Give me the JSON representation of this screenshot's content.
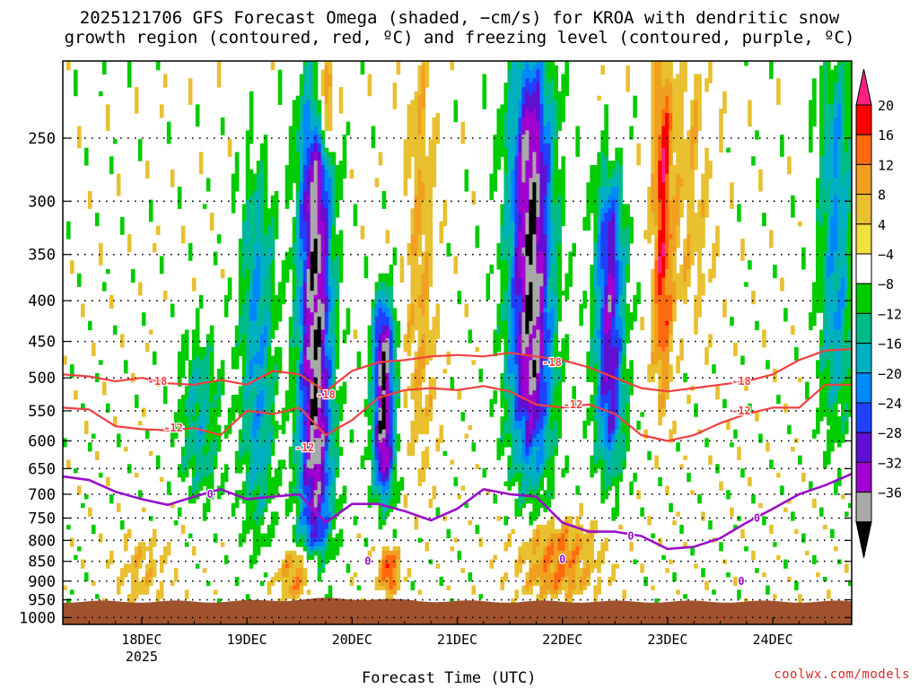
{
  "chart_data": {
    "type": "heatmap",
    "title_line1": "2025121706 GFS Forecast Omega (shaded, −cm/s) for KROA with dendritic snow",
    "title_line2": "growth region (contoured, red, ºC) and freezing level (contoured, purple, ºC)",
    "xlabel": "Forecast Time (UTC)",
    "y_ticks": [
      250,
      300,
      350,
      400,
      450,
      500,
      550,
      600,
      650,
      700,
      750,
      800,
      850,
      900,
      950,
      1000
    ],
    "y_tick_labels": [
      "250",
      "300",
      "350",
      "400",
      "450",
      "500",
      "550",
      "600",
      "650",
      "700",
      "750",
      "800",
      "850",
      "900",
      "950",
      "1000"
    ],
    "ylim": [
      1020,
      200
    ],
    "x_range_days": [
      17.25,
      24.75
    ],
    "x_ticks": [
      {
        "day": 18,
        "label": "18DEC",
        "sub": "2025"
      },
      {
        "day": 19,
        "label": "19DEC",
        "sub": ""
      },
      {
        "day": 20,
        "label": "20DEC",
        "sub": ""
      },
      {
        "day": 21,
        "label": "21DEC",
        "sub": ""
      },
      {
        "day": 22,
        "label": "22DEC",
        "sub": ""
      },
      {
        "day": 23,
        "label": "23DEC",
        "sub": ""
      },
      {
        "day": 24,
        "label": "24DEC",
        "sub": ""
      }
    ],
    "colorbar": {
      "labels": [
        "20",
        "16",
        "12",
        "8",
        "4",
        "−4",
        "−8",
        "−12",
        "−16",
        "−20",
        "−24",
        "−28",
        "−32",
        "−36"
      ],
      "colors": [
        "#ff0000",
        "#ff6a10",
        "#f0a020",
        "#e8c030",
        "#f0e040",
        "#ffffff",
        "#00cc00",
        "#00bb88",
        "#00b0c0",
        "#0088ff",
        "#2040ff",
        "#6010d0",
        "#a000d0",
        "#a8a8a8"
      ],
      "cap_top_color": "#ff2080",
      "cap_bottom_color": "#000000"
    },
    "contour_18": [
      [
        17.25,
        495
      ],
      [
        17.5,
        498
      ],
      [
        17.75,
        505
      ],
      [
        18.0,
        500
      ],
      [
        18.25,
        508
      ],
      [
        18.5,
        510
      ],
      [
        18.75,
        503
      ],
      [
        19.0,
        510
      ],
      [
        19.25,
        490
      ],
      [
        19.5,
        495
      ],
      [
        19.75,
        520
      ],
      [
        20.0,
        490
      ],
      [
        20.25,
        478
      ],
      [
        20.5,
        475
      ],
      [
        20.75,
        470
      ],
      [
        21.0,
        468
      ],
      [
        21.25,
        470
      ],
      [
        21.5,
        465
      ],
      [
        21.75,
        470
      ],
      [
        22.0,
        475
      ],
      [
        22.25,
        485
      ],
      [
        22.5,
        500
      ],
      [
        22.75,
        515
      ],
      [
        23.0,
        520
      ],
      [
        23.25,
        515
      ],
      [
        23.5,
        510
      ],
      [
        23.75,
        505
      ],
      [
        24.0,
        495
      ],
      [
        24.25,
        475
      ],
      [
        24.5,
        462
      ],
      [
        24.75,
        460
      ]
    ],
    "contour_12": [
      [
        17.25,
        545
      ],
      [
        17.5,
        548
      ],
      [
        17.75,
        575
      ],
      [
        18.0,
        580
      ],
      [
        18.25,
        582
      ],
      [
        18.5,
        578
      ],
      [
        18.75,
        590
      ],
      [
        19.0,
        550
      ],
      [
        19.25,
        555
      ],
      [
        19.5,
        545
      ],
      [
        19.75,
        590
      ],
      [
        20.0,
        565
      ],
      [
        20.25,
        530
      ],
      [
        20.5,
        518
      ],
      [
        20.75,
        515
      ],
      [
        21.0,
        518
      ],
      [
        21.25,
        512
      ],
      [
        21.5,
        520
      ],
      [
        21.75,
        540
      ],
      [
        22.0,
        545
      ],
      [
        22.25,
        540
      ],
      [
        22.5,
        555
      ],
      [
        22.75,
        590
      ],
      [
        23.0,
        600
      ],
      [
        23.25,
        590
      ],
      [
        23.5,
        570
      ],
      [
        23.75,
        555
      ],
      [
        24.0,
        545
      ],
      [
        24.25,
        545
      ],
      [
        24.5,
        510
      ],
      [
        24.75,
        510
      ]
    ],
    "contour_18_labels": [
      {
        "day": 18.15,
        "p": 505,
        "text": "-18"
      },
      {
        "day": 19.75,
        "p": 525,
        "text": "-18"
      },
      {
        "day": 21.9,
        "p": 478,
        "text": "-18"
      },
      {
        "day": 23.7,
        "p": 505,
        "text": "-18"
      }
    ],
    "contour_12_labels": [
      {
        "day": 18.3,
        "p": 578,
        "text": "-12"
      },
      {
        "day": 19.55,
        "p": 612,
        "text": "-12"
      },
      {
        "day": 22.1,
        "p": 540,
        "text": "-12"
      },
      {
        "day": 23.7,
        "p": 550,
        "text": "-12"
      }
    ],
    "freezing_level": [
      [
        17.25,
        665
      ],
      [
        17.5,
        672
      ],
      [
        17.75,
        695
      ],
      [
        18.0,
        710
      ],
      [
        18.25,
        722
      ],
      [
        18.5,
        705
      ],
      [
        18.75,
        690
      ],
      [
        19.0,
        710
      ],
      [
        19.25,
        705
      ],
      [
        19.5,
        700
      ],
      [
        19.75,
        760
      ],
      [
        20.0,
        720
      ],
      [
        20.25,
        720
      ],
      [
        20.5,
        735
      ],
      [
        20.75,
        755
      ],
      [
        21.0,
        730
      ],
      [
        21.25,
        690
      ],
      [
        21.5,
        700
      ],
      [
        21.75,
        705
      ],
      [
        22.0,
        760
      ],
      [
        22.25,
        780
      ],
      [
        22.5,
        780
      ],
      [
        22.75,
        790
      ],
      [
        23.0,
        820
      ],
      [
        23.25,
        815
      ],
      [
        23.5,
        795
      ],
      [
        23.75,
        760
      ],
      [
        24.0,
        730
      ],
      [
        24.25,
        700
      ],
      [
        24.5,
        682
      ],
      [
        24.75,
        660
      ]
    ],
    "freezing_labels": [
      {
        "day": 18.65,
        "p": 700,
        "text": "0"
      },
      {
        "day": 23.85,
        "p": 750,
        "text": "0"
      },
      {
        "day": 20.15,
        "p": 850,
        "text": "0"
      },
      {
        "day": 22.65,
        "p": 790,
        "text": "0"
      },
      {
        "day": 22.0,
        "p": 845,
        "text": "0"
      },
      {
        "day": 23.7,
        "p": 900,
        "text": "0"
      }
    ],
    "terrain_color": "#a0522d",
    "ascent_cores": [
      {
        "day": 19.65,
        "p_top": 220,
        "p_bot": 870,
        "w": 0.35,
        "peak": -36
      },
      {
        "day": 20.3,
        "p_top": 400,
        "p_bot": 700,
        "w": 0.22,
        "peak": -36
      },
      {
        "day": 21.7,
        "p_top": 200,
        "p_bot": 640,
        "w": 0.45,
        "peak": -36
      },
      {
        "day": 22.45,
        "p_top": 280,
        "p_bot": 640,
        "w": 0.3,
        "peak": -28
      },
      {
        "day": 19.1,
        "p_top": 280,
        "p_bot": 760,
        "w": 0.35,
        "peak": -16
      },
      {
        "day": 24.6,
        "p_top": 200,
        "p_bot": 560,
        "w": 0.35,
        "peak": -16
      },
      {
        "day": 18.55,
        "p_top": 450,
        "p_bot": 700,
        "w": 0.4,
        "peak": -12
      }
    ],
    "descent_cores": [
      {
        "day": 19.55,
        "p_top": 820,
        "p_bot": 950,
        "w": 0.5,
        "peak": 16
      },
      {
        "day": 21.95,
        "p_top": 760,
        "p_bot": 940,
        "w": 0.8,
        "peak": 12
      },
      {
        "day": 20.35,
        "p_top": 820,
        "p_bot": 930,
        "w": 0.2,
        "peak": 16
      },
      {
        "day": 22.95,
        "p_top": 200,
        "p_bot": 520,
        "w": 0.2,
        "peak": 16
      },
      {
        "day": 20.65,
        "p_top": 200,
        "p_bot": 620,
        "w": 0.3,
        "peak": 8
      },
      {
        "day": 23.2,
        "p_top": 200,
        "p_bot": 420,
        "w": 0.5,
        "peak": 6
      },
      {
        "day": 18.0,
        "p_top": 800,
        "p_bot": 950,
        "w": 0.5,
        "peak": 6
      },
      {
        "day": 19.75,
        "p_top": 200,
        "p_bot": 260,
        "w": 0.2,
        "peak": 20
      }
    ]
  },
  "credit": "coolwx.com/models"
}
